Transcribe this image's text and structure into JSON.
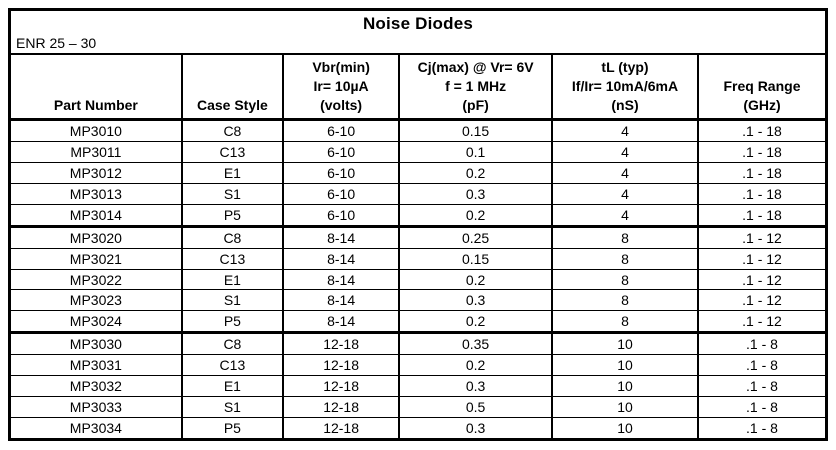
{
  "title": "Noise Diodes",
  "subtitle": "ENR 25 – 30",
  "colors": {
    "border": "#000000",
    "text": "#000000",
    "background": "#ffffff"
  },
  "table": {
    "columns": [
      {
        "key": "part-number",
        "lines": [
          "Part Number"
        ]
      },
      {
        "key": "case-style",
        "lines": [
          "Case Style"
        ]
      },
      {
        "key": "vbr-min",
        "lines": [
          "Vbr(min)",
          "Ir= 10µA",
          "(volts)"
        ]
      },
      {
        "key": "cj-max",
        "lines": [
          "Cj(max) @ Vr= 6V",
          "f = 1 MHz",
          "(pF)"
        ]
      },
      {
        "key": "tl-typ",
        "lines": [
          "tL (typ)",
          "If/Ir= 10mA/6mA",
          "(nS)"
        ]
      },
      {
        "key": "freq-range",
        "lines": [
          "Freq Range",
          "(GHz)"
        ]
      }
    ],
    "groups": [
      {
        "rows": [
          [
            "MP3010",
            "C8",
            "6-10",
            "0.15",
            "4",
            ".1 - 18"
          ],
          [
            "MP3011",
            "C13",
            "6-10",
            "0.1",
            "4",
            ".1 - 18"
          ],
          [
            "MP3012",
            "E1",
            "6-10",
            "0.2",
            "4",
            ".1 - 18"
          ],
          [
            "MP3013",
            "S1",
            "6-10",
            "0.3",
            "4",
            ".1 - 18"
          ],
          [
            "MP3014",
            "P5",
            "6-10",
            "0.2",
            "4",
            ".1 - 18"
          ]
        ]
      },
      {
        "rows": [
          [
            "MP3020",
            "C8",
            "8-14",
            "0.25",
            "8",
            ".1 - 12"
          ],
          [
            "MP3021",
            "C13",
            "8-14",
            "0.15",
            "8",
            ".1 - 12"
          ],
          [
            "MP3022",
            "E1",
            "8-14",
            "0.2",
            "8",
            ".1 - 12"
          ],
          [
            "MP3023",
            "S1",
            "8-14",
            "0.3",
            "8",
            ".1 - 12"
          ],
          [
            "MP3024",
            "P5",
            "8-14",
            "0.2",
            "8",
            ".1 - 12"
          ]
        ]
      },
      {
        "rows": [
          [
            "MP3030",
            "C8",
            "12-18",
            "0.35",
            "10",
            ".1 - 8"
          ],
          [
            "MP3031",
            "C13",
            "12-18",
            "0.2",
            "10",
            ".1 - 8"
          ],
          [
            "MP3032",
            "E1",
            "12-18",
            "0.3",
            "10",
            ".1 - 8"
          ],
          [
            "MP3033",
            "S1",
            "12-18",
            "0.5",
            "10",
            ".1 - 8"
          ],
          [
            "MP3034",
            "P5",
            "12-18",
            "0.3",
            "10",
            ".1 - 8"
          ]
        ]
      }
    ],
    "column_widths_pct": [
      20.98,
      12.44,
      14.27,
      18.78,
      17.93,
      15.6
    ]
  }
}
